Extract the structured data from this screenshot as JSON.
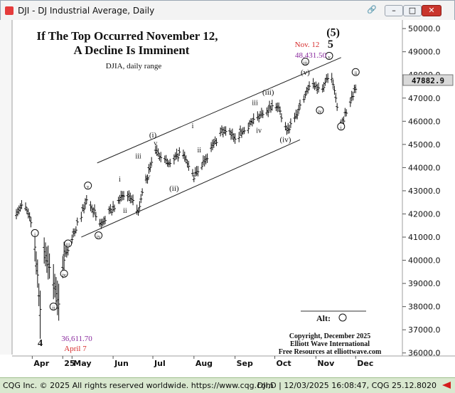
{
  "window": {
    "title": "DJI - DJ Industrial Average, Daily",
    "link_icon": "link-icon",
    "minimize_icon": "minimize-icon",
    "maximize_icon": "maximize-icon",
    "close_icon": "close-icon"
  },
  "statusbar": {
    "left": "CQG Inc. © 2025 All rights reserved worldwide. https://www.cqg.com",
    "right": "DJI,D | 12/03/2025 16:08:47, CQG 25.12.8020",
    "arrow_icon": "arrow-left-icon",
    "arrow_color": "#d51d1d"
  },
  "chart_data": {
    "type": "ohlc",
    "title": "If The Top Occurred November 12, A Decline Is Imminent",
    "title_lines": [
      "If The Top Occurred November 12,",
      "A Decline Is Imminent"
    ],
    "subtitle": "DJIA, daily range",
    "x_labels": [
      "Apr",
      "25",
      "May",
      "Jun",
      "Jul",
      "Aug",
      "Sep",
      "Oct",
      "Nov",
      "Dec"
    ],
    "y_ticks": [
      "50000.0",
      "49000.0",
      "48000.0",
      "47000.0",
      "46000.0",
      "45000.0",
      "44000.0",
      "43000.0",
      "42000.0",
      "41000.0",
      "40000.0",
      "39000.0",
      "38000.0",
      "37000.0",
      "36000.0"
    ],
    "ylim": [
      35900,
      50250
    ],
    "last_price": "47882.9",
    "last_price_value": 47882.9,
    "channel_lines": [
      {
        "name": "upper",
        "start": [
          "May 20",
          44200
        ],
        "end": [
          "Nov 20",
          48750
        ]
      },
      {
        "name": "lower",
        "start": [
          "May 8",
          41000
        ],
        "end": [
          "Oct 20",
          45200
        ]
      }
    ],
    "wave_labels": [
      "4",
      "(5)",
      "5",
      "i",
      "ii",
      "iii",
      "iv",
      "v",
      "(i)",
      "(ii)",
      "(iii)",
      "(iv)",
      "(v)"
    ],
    "annotations": {
      "low_value": "36,611.70",
      "low_date": "April 7",
      "high_date": "Nov. 12",
      "high_value": "48,431.50",
      "alt_label": "Alt:",
      "copyright_lines": [
        "Copyright, December 2025",
        "Elliott Wave International",
        "Free Resources at elliottwave.com"
      ]
    },
    "colors": {
      "bars": "#111111",
      "high_date": "#d62b2b",
      "high_value": "#8a2b9e",
      "low_value": "#8a2b9e",
      "low_date": "#d62b2b",
      "last_price_box": "#d9d9d9"
    },
    "series_anchors": [
      {
        "date": "Mar 20",
        "close": 42100
      },
      {
        "date": "Mar 26",
        "close": 42400
      },
      {
        "date": "Mar 31",
        "close": 41600
      },
      {
        "date": "Apr 3",
        "close": 40600
      },
      {
        "date": "Apr 7",
        "close": 37900
      },
      {
        "date": "Apr 9",
        "close": 40600
      },
      {
        "date": "Apr 21",
        "close": 38200
      },
      {
        "date": "Apr 25",
        "close": 40100
      },
      {
        "date": "May 13",
        "close": 42700
      },
      {
        "date": "May 22",
        "close": 41500
      },
      {
        "date": "Jun 10",
        "close": 42900
      },
      {
        "date": "Jun 20",
        "close": 42200
      },
      {
        "date": "Jul 3",
        "close": 44800
      },
      {
        "date": "Jul 11",
        "close": 44200
      },
      {
        "date": "Jul 15",
        "close": 44100
      },
      {
        "date": "Jul 22",
        "close": 44700
      },
      {
        "date": "Aug 1",
        "close": 43600
      },
      {
        "date": "Aug 12",
        "close": 44600
      },
      {
        "date": "Aug 22",
        "close": 45600
      },
      {
        "date": "Sep 2",
        "close": 45300
      },
      {
        "date": "Sep 22",
        "close": 46400
      },
      {
        "date": "Oct 3",
        "close": 46700
      },
      {
        "date": "Oct 10",
        "close": 45500
      },
      {
        "date": "Oct 17",
        "close": 46200
      },
      {
        "date": "Oct 28",
        "close": 47700
      },
      {
        "date": "Nov 5",
        "close": 47300
      },
      {
        "date": "Nov 12",
        "close": 48200
      },
      {
        "date": "Nov 20",
        "close": 45800
      },
      {
        "date": "Dec 1",
        "close": 47500
      },
      {
        "date": "Dec 3",
        "close": 47880
      }
    ]
  }
}
